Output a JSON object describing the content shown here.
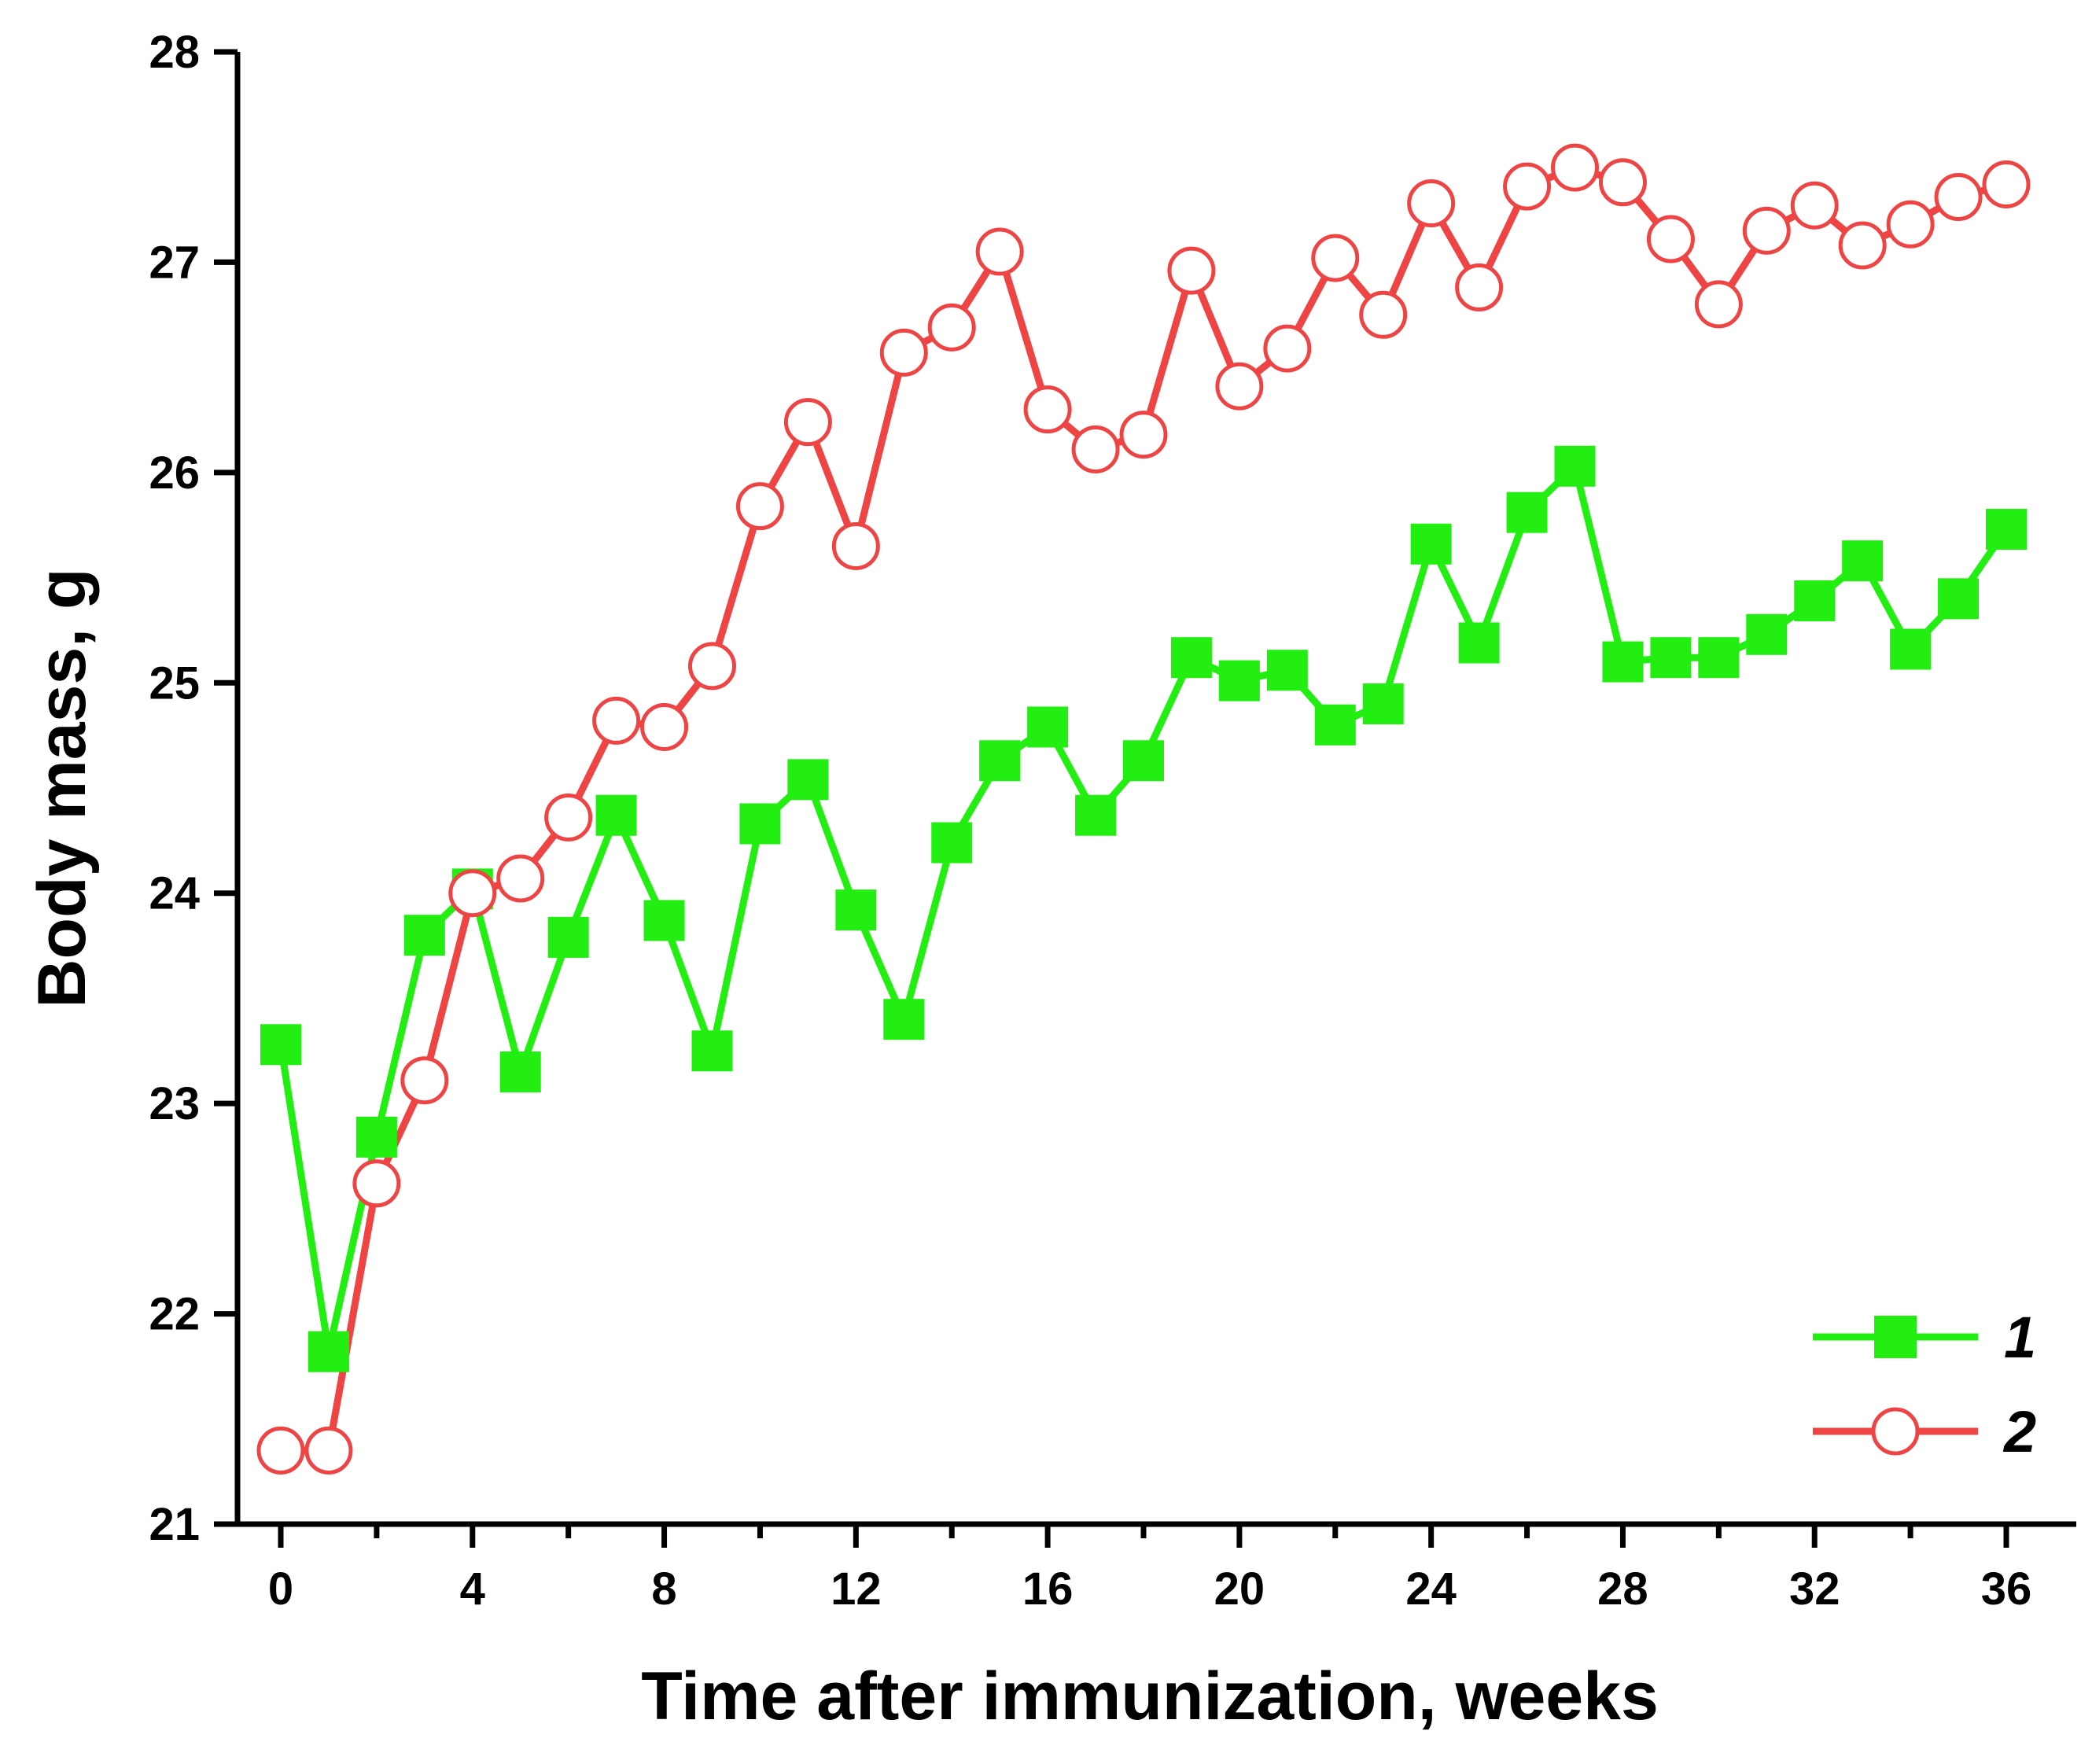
{
  "chart_data": {
    "type": "line",
    "xlabel": "Time after immunization, weeks",
    "ylabel": "Body mass, g",
    "xlim": [
      -1,
      37
    ],
    "ylim": [
      21,
      28
    ],
    "xticks": [
      0,
      4,
      8,
      12,
      16,
      20,
      24,
      28,
      32,
      36
    ],
    "yticks": [
      21,
      22,
      23,
      24,
      25,
      26,
      27,
      28
    ],
    "legend_position": "bottom-right",
    "series": [
      {
        "name": "1",
        "color": "#22ee11",
        "marker": "filled-square",
        "x": [
          0,
          1,
          2,
          3,
          4,
          5,
          6,
          7,
          8,
          9,
          10,
          11,
          12,
          13,
          14,
          15,
          16,
          17,
          18,
          19,
          20,
          21,
          22,
          23,
          24,
          25,
          26,
          27,
          28,
          29,
          30,
          31,
          32,
          33,
          34,
          35,
          36
        ],
        "values": [
          23.28,
          21.82,
          22.84,
          23.8,
          24.02,
          23.15,
          23.79,
          24.37,
          23.87,
          23.25,
          24.33,
          24.54,
          23.92,
          23.4,
          24.24,
          24.63,
          24.79,
          24.37,
          24.63,
          25.12,
          25.01,
          25.06,
          24.8,
          24.9,
          25.66,
          25.19,
          25.81,
          26.03,
          25.1,
          25.12,
          25.12,
          25.23,
          25.39,
          25.58,
          25.16,
          25.4,
          25.73
        ]
      },
      {
        "name": "2",
        "color": "#ee4444",
        "marker": "open-circle",
        "x": [
          0,
          1,
          2,
          3,
          4,
          5,
          6,
          7,
          8,
          9,
          10,
          11,
          12,
          13,
          14,
          15,
          16,
          17,
          18,
          19,
          20,
          21,
          22,
          23,
          24,
          25,
          26,
          27,
          28,
          29,
          30,
          31,
          32,
          33,
          34,
          35,
          36
        ],
        "values": [
          21.35,
          21.35,
          22.62,
          23.11,
          24.0,
          24.07,
          24.36,
          24.82,
          24.79,
          25.08,
          25.84,
          26.24,
          25.65,
          26.57,
          26.69,
          27.05,
          26.3,
          26.11,
          26.18,
          26.96,
          26.41,
          26.59,
          27.02,
          26.75,
          27.28,
          26.88,
          27.36,
          27.45,
          27.38,
          27.11,
          26.8,
          27.15,
          27.27,
          27.08,
          27.18,
          27.31,
          27.37
        ]
      }
    ]
  }
}
